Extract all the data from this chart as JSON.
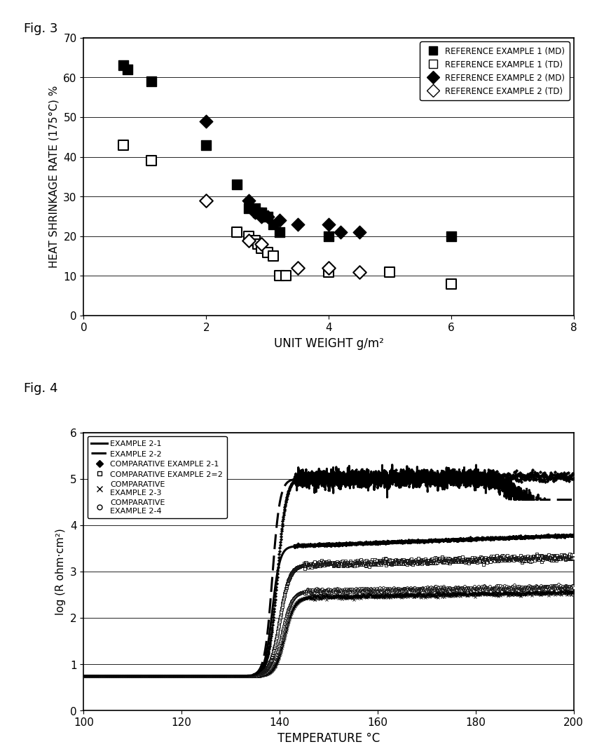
{
  "fig3_title": "Fig. 3",
  "fig4_title": "Fig. 4",
  "fig3": {
    "xlabel": "UNIT WEIGHT g/m²",
    "ylabel": "HEAT SHRINKAGE RATE (175°C) %",
    "xlim": [
      0,
      8
    ],
    "ylim": [
      0,
      70
    ],
    "xticks": [
      0,
      2,
      4,
      6,
      8
    ],
    "yticks": [
      0,
      10,
      20,
      30,
      40,
      50,
      60,
      70
    ],
    "ref1_md_x": [
      0.65,
      0.72,
      1.1,
      2.0,
      2.5,
      2.7,
      2.8,
      2.85,
      2.9,
      3.0,
      3.1,
      3.2,
      4.0,
      6.0
    ],
    "ref1_md_y": [
      63,
      62,
      59,
      43,
      33,
      27,
      27,
      26,
      26,
      25,
      23,
      21,
      20,
      20
    ],
    "ref1_td_x": [
      0.65,
      1.1,
      2.5,
      2.7,
      2.8,
      2.85,
      2.9,
      3.0,
      3.1,
      3.2,
      3.3,
      4.0,
      5.0,
      6.0
    ],
    "ref1_td_y": [
      43,
      39,
      21,
      20,
      19,
      18,
      17,
      16,
      15,
      10,
      10,
      11,
      11,
      8
    ],
    "ref2_md_x": [
      2.0,
      2.7,
      2.8,
      2.9,
      3.0,
      3.2,
      3.5,
      4.0,
      4.2,
      4.5
    ],
    "ref2_md_y": [
      49,
      29,
      26,
      25,
      25,
      24,
      23,
      23,
      21,
      21
    ],
    "ref2_td_x": [
      2.0,
      2.7,
      2.9,
      3.5,
      4.0,
      4.5
    ],
    "ref2_td_y": [
      29,
      19,
      18,
      12,
      12,
      11
    ]
  },
  "fig4": {
    "xlabel": "TEMPERATURE °C",
    "ylabel": "log (R ohm·cm²)",
    "xlim": [
      100,
      200
    ],
    "ylim": [
      0,
      6
    ],
    "xticks": [
      100,
      120,
      140,
      160,
      180,
      200
    ],
    "yticks": [
      0,
      1,
      2,
      3,
      4,
      5,
      6
    ]
  }
}
